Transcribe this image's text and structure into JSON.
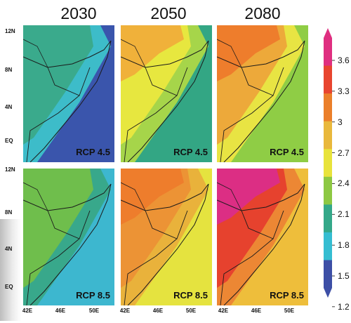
{
  "columns": [
    "2030",
    "2050",
    "2080"
  ],
  "rows": [
    {
      "scenario": "RCP 4.5",
      "lat_labels": [
        "12N",
        "8N",
        "4N",
        "EQ"
      ]
    },
    {
      "scenario": "RCP 8.5",
      "lat_labels": [
        "12N",
        "8N",
        "4N",
        "EQ"
      ]
    }
  ],
  "lon_labels": [
    "42E",
    "46E",
    "50E"
  ],
  "colorbar": {
    "ticks": [
      "3.6",
      "3.3",
      "3",
      "2.7",
      "2.4",
      "2.1",
      "1.8",
      "1.5",
      "1.2"
    ],
    "colors": [
      "#df2f80",
      "#e8452f",
      "#eb7f2a",
      "#e9b83c",
      "#e8e33b",
      "#8dc843",
      "#34a889",
      "#35bdd1",
      "#3d4fa6"
    ]
  },
  "panel_colors": {
    "r1c1": {
      "bg": "#3a55ac",
      "mid": "#3dbcc9",
      "top": "#3aaa8c"
    },
    "r1c2": {
      "bg": "#33a684",
      "mid": "#a6d54a",
      "top": "#e7e73f",
      "north": "#f0b13a"
    },
    "r1c3": {
      "bg": "#8fcd45",
      "mid": "#e8e443",
      "top": "#eda93a",
      "north": "#ee7d2c"
    },
    "r2c1": {
      "bg": "#3db7cf",
      "mid": "#38a88b",
      "top": "#6fbe4c"
    },
    "r2c2": {
      "bg": "#e5e33f",
      "mid": "#e9b23b",
      "top": "#ec9335",
      "north": "#ee7d2c"
    },
    "r2c3": {
      "bg": "#eebe3b",
      "mid": "#ec8734",
      "top": "#e6422e",
      "north": "#dc2e84"
    }
  }
}
